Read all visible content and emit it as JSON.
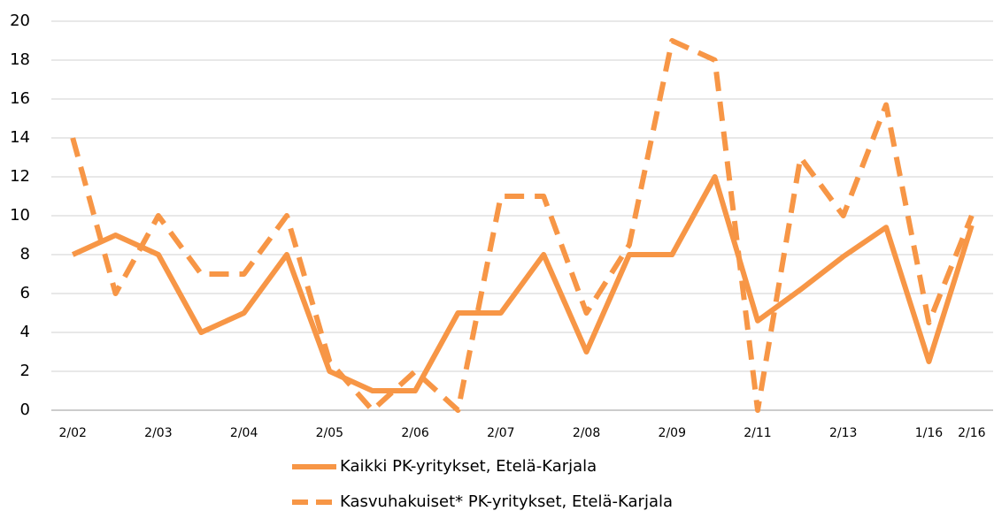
{
  "chart_data": {
    "type": "line",
    "categories": [
      "2/02",
      null,
      "2/03",
      null,
      "2/04",
      null,
      "2/05",
      null,
      "2/06",
      null,
      "2/07",
      null,
      "2/08",
      null,
      "2/09",
      null,
      "2/11",
      null,
      "2/13",
      null,
      "1/16",
      "2/16"
    ],
    "series": [
      {
        "name": "Kaikki PK-yritykset, Etelä-Karjala",
        "color": "#f79646",
        "dash": false,
        "values": [
          8,
          9,
          8,
          4,
          5,
          8,
          2,
          1,
          1,
          5,
          5,
          8,
          3,
          8,
          8,
          12,
          4.6,
          6.2,
          7.9,
          9.4,
          2.5,
          9.5
        ]
      },
      {
        "name": "Kasvuhakuiset* PK-yritykset, Etelä-Karjala",
        "color": "#f79646",
        "dash": true,
        "values": [
          14,
          6,
          10,
          7,
          7,
          10,
          2.5,
          0,
          2,
          0,
          11,
          11,
          5,
          8.5,
          19,
          18,
          0,
          13,
          10,
          15.7,
          4.5,
          10
        ]
      }
    ],
    "ylim": [
      0,
      20
    ],
    "yticks": [
      0,
      2,
      4,
      6,
      8,
      10,
      12,
      14,
      16,
      18,
      20
    ],
    "grid": true
  }
}
